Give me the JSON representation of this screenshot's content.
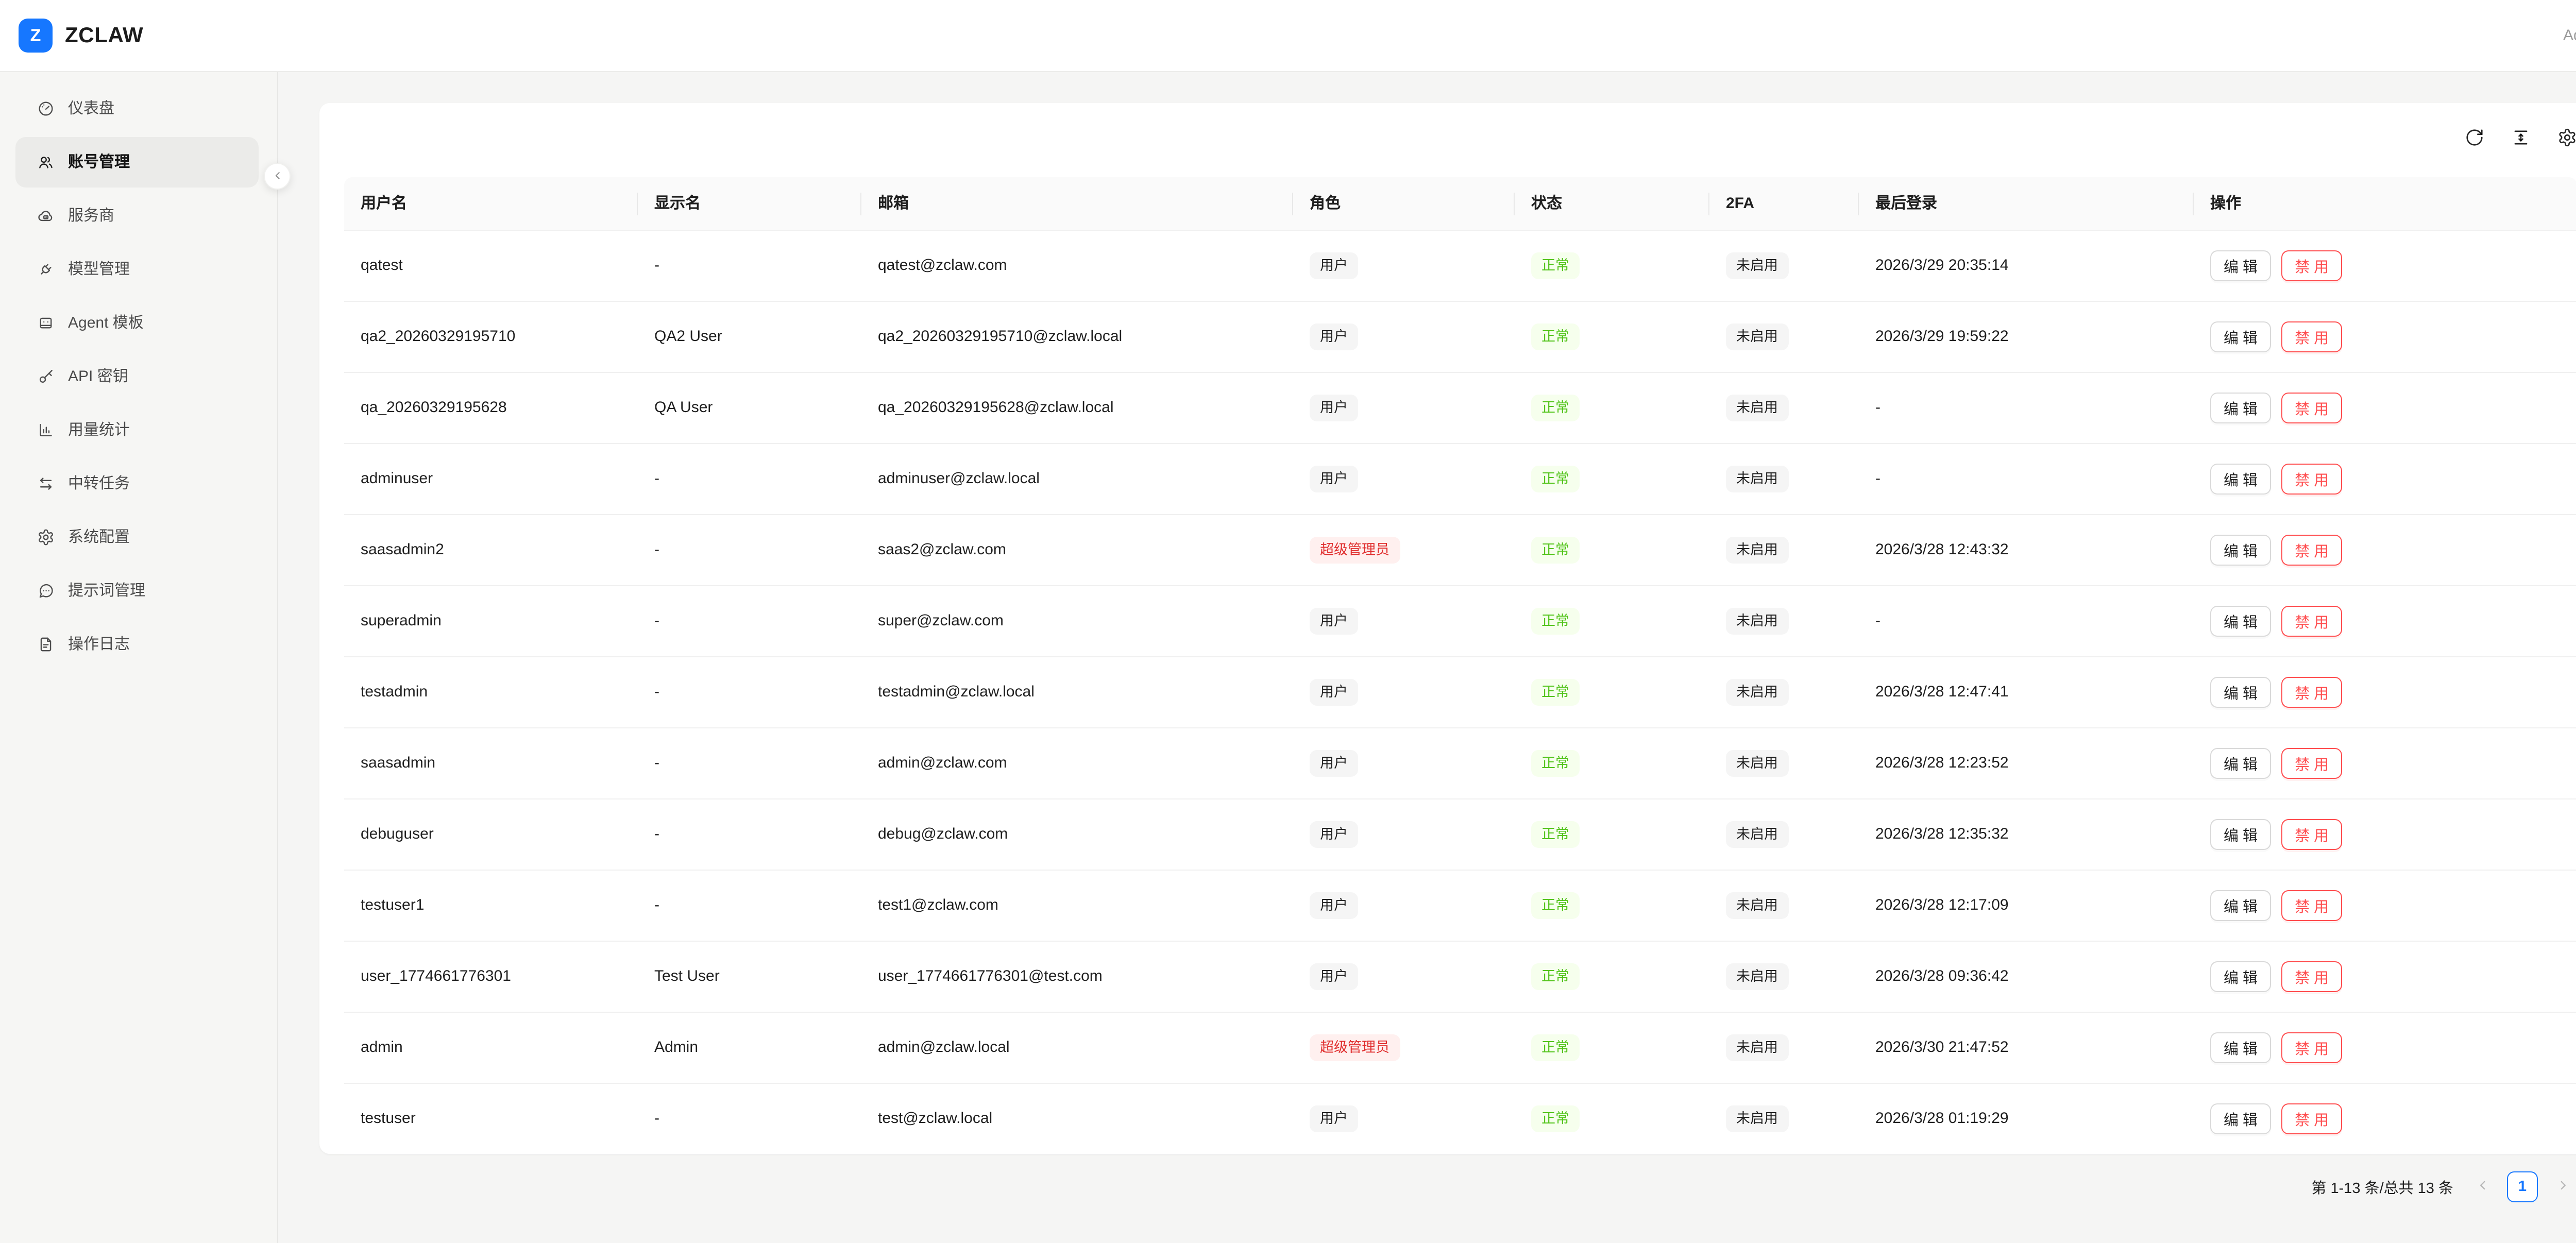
{
  "colors": {
    "primary": "#1677ff",
    "danger": "#ff4d4f",
    "success_text": "#52c41a",
    "success_bg": "#f6ffed",
    "super_text": "#e02e2e",
    "super_bg": "#fff0ef",
    "tag_gray_bg": "#f5f5f5"
  },
  "header": {
    "logo_letter": "Z",
    "brand_name": "ZCLAW",
    "user_label": "Admin"
  },
  "sidebar": {
    "items": [
      {
        "id": "dashboard",
        "icon": "gauge",
        "label": "仪表盘",
        "active": false
      },
      {
        "id": "accounts",
        "icon": "users",
        "label": "账号管理",
        "active": true
      },
      {
        "id": "providers",
        "icon": "cloud",
        "label": "服务商",
        "active": false
      },
      {
        "id": "models",
        "icon": "plug",
        "label": "模型管理",
        "active": false
      },
      {
        "id": "agent-templates",
        "icon": "robot",
        "label": "Agent 模板",
        "active": false
      },
      {
        "id": "api-keys",
        "icon": "key",
        "label": "API 密钥",
        "active": false
      },
      {
        "id": "usage-stats",
        "icon": "bar-chart",
        "label": "用量统计",
        "active": false
      },
      {
        "id": "relay-tasks",
        "icon": "swap-arrows",
        "label": "中转任务",
        "active": false
      },
      {
        "id": "system-config",
        "icon": "gear",
        "label": "系统配置",
        "active": false
      },
      {
        "id": "prompts",
        "icon": "chat-dots",
        "label": "提示词管理",
        "active": false
      },
      {
        "id": "operation-logs",
        "icon": "file-text",
        "label": "操作日志",
        "active": false
      }
    ]
  },
  "toolbar": {
    "icons": [
      {
        "name": "refresh"
      },
      {
        "name": "column-height"
      },
      {
        "name": "settings"
      }
    ]
  },
  "table": {
    "columns": [
      "用户名",
      "显示名",
      "邮箱",
      "角色",
      "状态",
      "2FA",
      "最后登录",
      "操作"
    ],
    "rows": [
      {
        "username": "qatest",
        "display_name": "-",
        "email": "qatest@zclaw.com",
        "role": "用户",
        "role_type": "user",
        "status": "正常",
        "twofa": "未启用",
        "last_login": "2026/3/29 20:35:14"
      },
      {
        "username": "qa2_20260329195710",
        "display_name": "QA2 User",
        "email": "qa2_20260329195710@zclaw.local",
        "role": "用户",
        "role_type": "user",
        "status": "正常",
        "twofa": "未启用",
        "last_login": "2026/3/29 19:59:22"
      },
      {
        "username": "qa_20260329195628",
        "display_name": "QA User",
        "email": "qa_20260329195628@zclaw.local",
        "role": "用户",
        "role_type": "user",
        "status": "正常",
        "twofa": "未启用",
        "last_login": "-"
      },
      {
        "username": "adminuser",
        "display_name": "-",
        "email": "adminuser@zclaw.local",
        "role": "用户",
        "role_type": "user",
        "status": "正常",
        "twofa": "未启用",
        "last_login": "-"
      },
      {
        "username": "saasadmin2",
        "display_name": "-",
        "email": "saas2@zclaw.com",
        "role": "超级管理员",
        "role_type": "superadmin",
        "status": "正常",
        "twofa": "未启用",
        "last_login": "2026/3/28 12:43:32"
      },
      {
        "username": "superadmin",
        "display_name": "-",
        "email": "super@zclaw.com",
        "role": "用户",
        "role_type": "user",
        "status": "正常",
        "twofa": "未启用",
        "last_login": "-"
      },
      {
        "username": "testadmin",
        "display_name": "-",
        "email": "testadmin@zclaw.local",
        "role": "用户",
        "role_type": "user",
        "status": "正常",
        "twofa": "未启用",
        "last_login": "2026/3/28 12:47:41"
      },
      {
        "username": "saasadmin",
        "display_name": "-",
        "email": "admin@zclaw.com",
        "role": "用户",
        "role_type": "user",
        "status": "正常",
        "twofa": "未启用",
        "last_login": "2026/3/28 12:23:52"
      },
      {
        "username": "debuguser",
        "display_name": "-",
        "email": "debug@zclaw.com",
        "role": "用户",
        "role_type": "user",
        "status": "正常",
        "twofa": "未启用",
        "last_login": "2026/3/28 12:35:32"
      },
      {
        "username": "testuser1",
        "display_name": "-",
        "email": "test1@zclaw.com",
        "role": "用户",
        "role_type": "user",
        "status": "正常",
        "twofa": "未启用",
        "last_login": "2026/3/28 12:17:09"
      },
      {
        "username": "user_1774661776301",
        "display_name": "Test User",
        "email": "user_1774661776301@test.com",
        "role": "用户",
        "role_type": "user",
        "status": "正常",
        "twofa": "未启用",
        "last_login": "2026/3/28 09:36:42"
      },
      {
        "username": "admin",
        "display_name": "Admin",
        "email": "admin@zclaw.local",
        "role": "超级管理员",
        "role_type": "superadmin",
        "status": "正常",
        "twofa": "未启用",
        "last_login": "2026/3/30 21:47:52"
      },
      {
        "username": "testuser",
        "display_name": "-",
        "email": "test@zclaw.local",
        "role": "用户",
        "role_type": "user",
        "status": "正常",
        "twofa": "未启用",
        "last_login": "2026/3/28 01:19:29"
      }
    ]
  },
  "actions": {
    "edit_label": "编 辑",
    "disable_label": "禁 用"
  },
  "pagination": {
    "summary": "第 1-13 条/总共 13 条",
    "current_page": "1"
  }
}
